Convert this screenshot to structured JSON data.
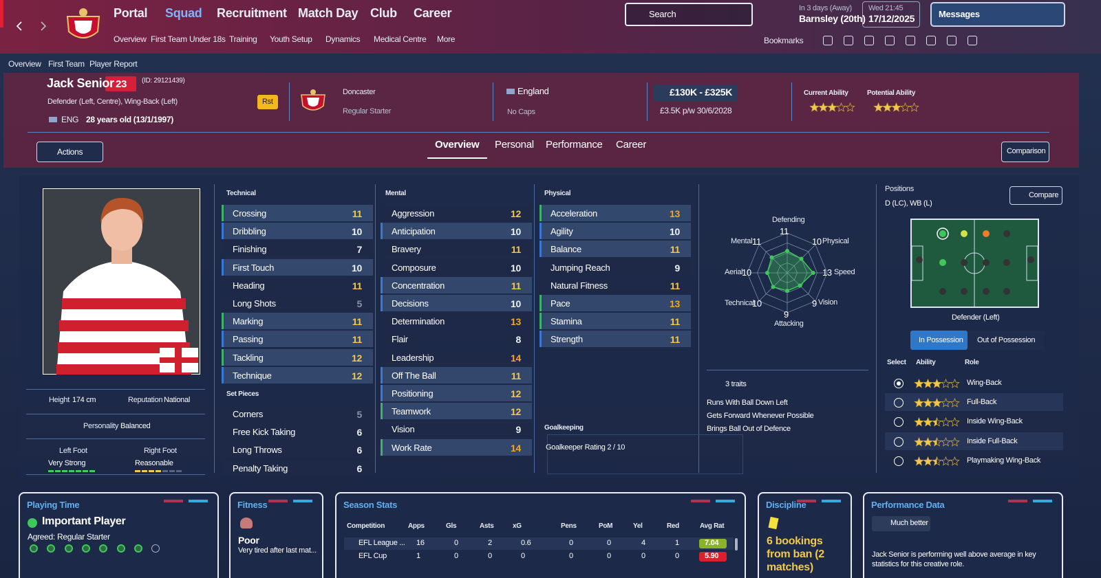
{
  "nav": {
    "menus": [
      "Portal",
      "Squad",
      "Recruitment",
      "Match Day",
      "Club",
      "Career"
    ],
    "submenus": [
      "Overview",
      "First Team",
      "Under 18s",
      "Training",
      "Youth Setup",
      "Dynamics",
      "Medical Centre",
      "More"
    ],
    "search": "Search",
    "next_match": {
      "when": "In 3 days (Away)",
      "opponent": "Barnsley (20th)"
    },
    "clock": {
      "time": "Wed 21:45",
      "date": "17/12/2025"
    },
    "messages": "Messages",
    "bookmarks": "Bookmarks"
  },
  "breadcrumb": [
    "Overview",
    "First Team",
    "Player Report"
  ],
  "player": {
    "name": "Jack Senior",
    "number": "23",
    "id": "(ID: 29121439)",
    "positions": "Defender (Left, Centre), Wing-Back (Left)",
    "nation": "ENG",
    "age": "28 years old (13/1/1997)",
    "status_badge": "Rst",
    "club": "Doncaster",
    "squad_status": "Regular Starter",
    "country": "England",
    "caps": "No Caps",
    "value": "£130K - £325K",
    "contract": "£3.5K p/w  30/6/2028",
    "current_ability_label": "Current Ability",
    "current_ability_stars": 3,
    "potential_ability_label": "Potential Ability",
    "potential_ability_stars": 3
  },
  "tabs": [
    "Overview",
    "Personal",
    "Performance",
    "Career"
  ],
  "actions": "Actions",
  "comparison": "Comparison",
  "profile": {
    "height_label": "Height",
    "height": "174 cm",
    "reputation_label": "Reputation",
    "reputation": "National",
    "personality_label": "Personality",
    "personality": "Balanced",
    "left_foot_label": "Left Foot",
    "left_foot": "Very Strong",
    "right_foot_label": "Right Foot",
    "right_foot": "Reasonable"
  },
  "attributes": {
    "technical": {
      "title": "Technical",
      "items": [
        {
          "name": "Crossing",
          "value": 11,
          "accent": "#3fb36b"
        },
        {
          "name": "Dribbling",
          "value": 10,
          "accent": "#3a78d8"
        },
        {
          "name": "Finishing",
          "value": 7
        },
        {
          "name": "First Touch",
          "value": 10,
          "accent": "#3a78d8"
        },
        {
          "name": "Heading",
          "value": 11
        },
        {
          "name": "Long Shots",
          "value": 5
        },
        {
          "name": "Marking",
          "value": 11,
          "accent": "#3fb36b"
        },
        {
          "name": "Passing",
          "value": 11,
          "accent": "#3a78d8"
        },
        {
          "name": "Tackling",
          "value": 12,
          "accent": "#3fb36b"
        },
        {
          "name": "Technique",
          "value": 12,
          "accent": "#3a78d8"
        }
      ]
    },
    "set_pieces": {
      "title": "Set Pieces",
      "items": [
        {
          "name": "Corners",
          "value": 5
        },
        {
          "name": "Free Kick Taking",
          "value": 6
        },
        {
          "name": "Long Throws",
          "value": 6
        },
        {
          "name": "Penalty Taking",
          "value": 6
        }
      ]
    },
    "mental": {
      "title": "Mental",
      "items": [
        {
          "name": "Aggression",
          "value": 12
        },
        {
          "name": "Anticipation",
          "value": 10,
          "accent": "#3a78d8"
        },
        {
          "name": "Bravery",
          "value": 11
        },
        {
          "name": "Composure",
          "value": 10
        },
        {
          "name": "Concentration",
          "value": 11,
          "accent": "#3a78d8"
        },
        {
          "name": "Decisions",
          "value": 10,
          "accent": "#3a78d8"
        },
        {
          "name": "Determination",
          "value": 13
        },
        {
          "name": "Flair",
          "value": 8
        },
        {
          "name": "Leadership",
          "value": 14
        },
        {
          "name": "Off The Ball",
          "value": 11,
          "accent": "#3a78d8"
        },
        {
          "name": "Positioning",
          "value": 12,
          "accent": "#3a78d8"
        },
        {
          "name": "Teamwork",
          "value": 12,
          "accent": "#3fb36b"
        },
        {
          "name": "Vision",
          "value": 9
        },
        {
          "name": "Work Rate",
          "value": 14,
          "accent": "#3fb36b"
        }
      ]
    },
    "physical": {
      "title": "Physical",
      "items": [
        {
          "name": "Acceleration",
          "value": 13,
          "accent": "#3fb36b"
        },
        {
          "name": "Agility",
          "value": 10,
          "accent": "#3a78d8"
        },
        {
          "name": "Balance",
          "value": 11,
          "accent": "#3a78d8"
        },
        {
          "name": "Jumping Reach",
          "value": 9
        },
        {
          "name": "Natural Fitness",
          "value": 11
        },
        {
          "name": "Pace",
          "value": 13,
          "accent": "#3fb36b"
        },
        {
          "name": "Stamina",
          "value": 11,
          "accent": "#3fb36b"
        },
        {
          "name": "Strength",
          "value": 11,
          "accent": "#3a78d8"
        }
      ]
    },
    "goalkeeping": {
      "title": "Goalkeeping",
      "rating": "Goalkeeper Rating  2 / 10"
    }
  },
  "radar": {
    "labels": [
      "Defending",
      "Physical",
      "Speed",
      "Vision",
      "Attacking",
      "Technical",
      "Aerial",
      "Mental"
    ],
    "values": [
      11,
      10,
      13,
      9,
      9,
      10,
      10,
      11
    ],
    "rlim": [
      0,
      20
    ]
  },
  "traits": {
    "title": "3 traits",
    "items": [
      "Runs With Ball Down Left",
      "Gets Forward Whenever Possible",
      "Brings Ball Out of Defence"
    ]
  },
  "positions": {
    "title": "Positions",
    "value": "D (LC), WB (L)",
    "compare": "Compare",
    "pitch_label": "Defender (Left)",
    "toggle": [
      "In Possession",
      "Out of Possession"
    ],
    "headers": [
      "Select",
      "Ability",
      "Role"
    ],
    "roles": [
      {
        "name": "Wing-Back",
        "stars": 3
      },
      {
        "name": "Full-Back",
        "stars": 3
      },
      {
        "name": "Inside Wing-Back",
        "stars": 2.5
      },
      {
        "name": "Inside Full-Back",
        "stars": 2.5
      },
      {
        "name": "Playmaking Wing-Back",
        "stars": 2.5
      }
    ]
  },
  "panels": {
    "playing_time": {
      "title": "Playing Time",
      "status": "Important Player",
      "agreed": "Agreed: Regular Starter"
    },
    "fitness": {
      "title": "Fitness",
      "status": "Poor",
      "note": "Very tired after last mat..."
    },
    "season_stats": {
      "title": "Season Stats",
      "columns": [
        "Competition",
        "Apps",
        "Gls",
        "Asts",
        "xG",
        "Pens",
        "PoM",
        "Yel",
        "Red",
        "Avg Rat"
      ],
      "rows": [
        [
          "EFL League ...",
          "16",
          "0",
          "2",
          "0.6",
          "0",
          "0",
          "4",
          "1",
          "7.04"
        ],
        [
          "EFL Cup",
          "1",
          "0",
          "0",
          "0",
          "0",
          "0",
          "0",
          "0",
          "5.90"
        ]
      ]
    },
    "discipline": {
      "title": "Discipline",
      "text": "6 bookings from ban (2 matches)"
    },
    "performance": {
      "title": "Performance Data",
      "badge": "Much better",
      "text": "Jack Senior is performing well above average in key statistics for this creative role."
    }
  }
}
